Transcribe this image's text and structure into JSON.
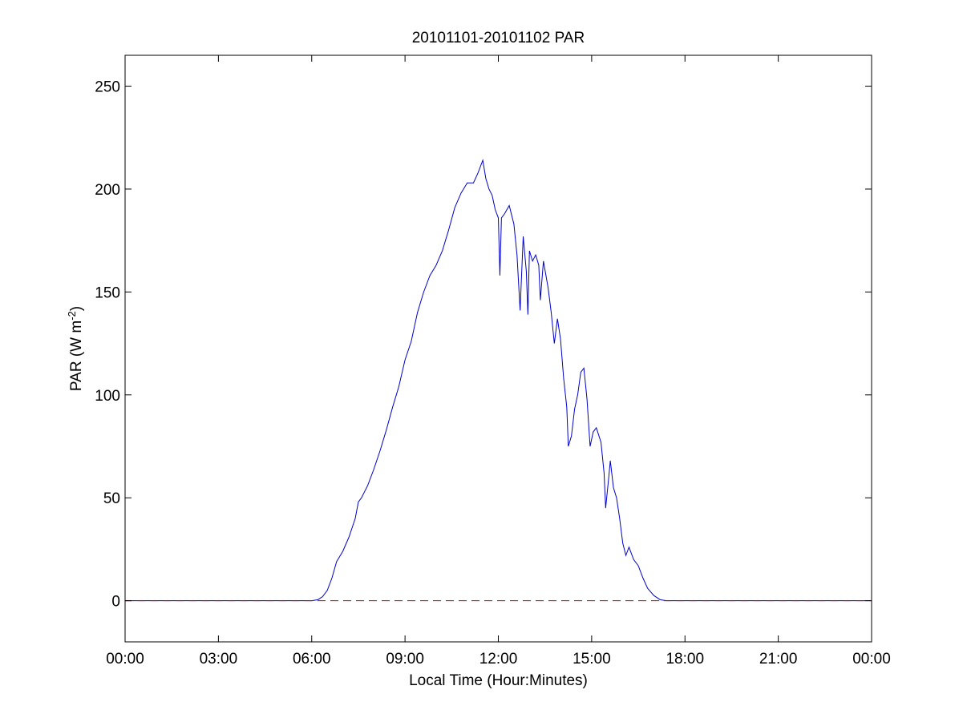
{
  "chart_data": {
    "type": "line",
    "title": "20101101-20101102 PAR",
    "xlabel": "Local Time (Hour:Minutes)",
    "ylabel": "PAR (W m-2)",
    "ylabel_parts": {
      "main": "PAR (W m",
      "superscript": "-2",
      "close": ")"
    },
    "xlim": [
      0,
      24
    ],
    "ylim": [
      -20,
      265
    ],
    "x_ticks": [
      0,
      3,
      6,
      9,
      12,
      15,
      18,
      21,
      24
    ],
    "x_tick_labels": [
      "00:00",
      "03:00",
      "06:00",
      "09:00",
      "12:00",
      "15:00",
      "18:00",
      "21:00",
      "00:00"
    ],
    "y_ticks": [
      0,
      50,
      100,
      150,
      200,
      250
    ],
    "y_tick_labels": [
      "0",
      "50",
      "100",
      "150",
      "200",
      "250"
    ],
    "grid": false,
    "legend": null,
    "series": [
      {
        "style": "solid",
        "color": "#0000cc",
        "points": [
          [
            0,
            0
          ],
          [
            6.0,
            0
          ],
          [
            6.2,
            0.5
          ],
          [
            6.35,
            2
          ],
          [
            6.5,
            5
          ],
          [
            6.65,
            11
          ],
          [
            6.8,
            19
          ],
          [
            7.0,
            24
          ],
          [
            7.2,
            31
          ],
          [
            7.4,
            40
          ],
          [
            7.5,
            48
          ],
          [
            7.6,
            50
          ],
          [
            7.8,
            56
          ],
          [
            8.0,
            64
          ],
          [
            8.2,
            73
          ],
          [
            8.4,
            83
          ],
          [
            8.6,
            94
          ],
          [
            8.8,
            104
          ],
          [
            9.0,
            117
          ],
          [
            9.2,
            126
          ],
          [
            9.4,
            140
          ],
          [
            9.6,
            150
          ],
          [
            9.8,
            158
          ],
          [
            10.0,
            163
          ],
          [
            10.2,
            170
          ],
          [
            10.4,
            180
          ],
          [
            10.6,
            191
          ],
          [
            10.8,
            198
          ],
          [
            11.0,
            203
          ],
          [
            11.2,
            203
          ],
          [
            11.35,
            208
          ],
          [
            11.5,
            214
          ],
          [
            11.6,
            205
          ],
          [
            11.7,
            200
          ],
          [
            11.8,
            197
          ],
          [
            11.9,
            190
          ],
          [
            12.0,
            186
          ],
          [
            12.05,
            158
          ],
          [
            12.1,
            186
          ],
          [
            12.2,
            188
          ],
          [
            12.35,
            192
          ],
          [
            12.5,
            183
          ],
          [
            12.6,
            168
          ],
          [
            12.7,
            141
          ],
          [
            12.8,
            177
          ],
          [
            12.9,
            160
          ],
          [
            12.95,
            139
          ],
          [
            13.0,
            170
          ],
          [
            13.1,
            165
          ],
          [
            13.2,
            168
          ],
          [
            13.3,
            163
          ],
          [
            13.35,
            146
          ],
          [
            13.45,
            165
          ],
          [
            13.6,
            152
          ],
          [
            13.7,
            140
          ],
          [
            13.8,
            125
          ],
          [
            13.9,
            137
          ],
          [
            14.0,
            127
          ],
          [
            14.1,
            108
          ],
          [
            14.2,
            94
          ],
          [
            14.25,
            75
          ],
          [
            14.35,
            80
          ],
          [
            14.45,
            93
          ],
          [
            14.55,
            100
          ],
          [
            14.65,
            111
          ],
          [
            14.75,
            113
          ],
          [
            14.85,
            98
          ],
          [
            14.95,
            75
          ],
          [
            15.05,
            82
          ],
          [
            15.15,
            84
          ],
          [
            15.3,
            77
          ],
          [
            15.4,
            62
          ],
          [
            15.45,
            45
          ],
          [
            15.55,
            60
          ],
          [
            15.6,
            68
          ],
          [
            15.7,
            55
          ],
          [
            15.8,
            50
          ],
          [
            15.9,
            40
          ],
          [
            16.0,
            28
          ],
          [
            16.1,
            22
          ],
          [
            16.2,
            26
          ],
          [
            16.35,
            20
          ],
          [
            16.5,
            17
          ],
          [
            16.65,
            11
          ],
          [
            16.8,
            6
          ],
          [
            17.0,
            2.5
          ],
          [
            17.2,
            0.5
          ],
          [
            17.4,
            0
          ],
          [
            24,
            0
          ]
        ]
      },
      {
        "style": "dashed",
        "color": "#cc0000",
        "points": [
          [
            0,
            0
          ],
          [
            24,
            0
          ]
        ]
      }
    ]
  }
}
